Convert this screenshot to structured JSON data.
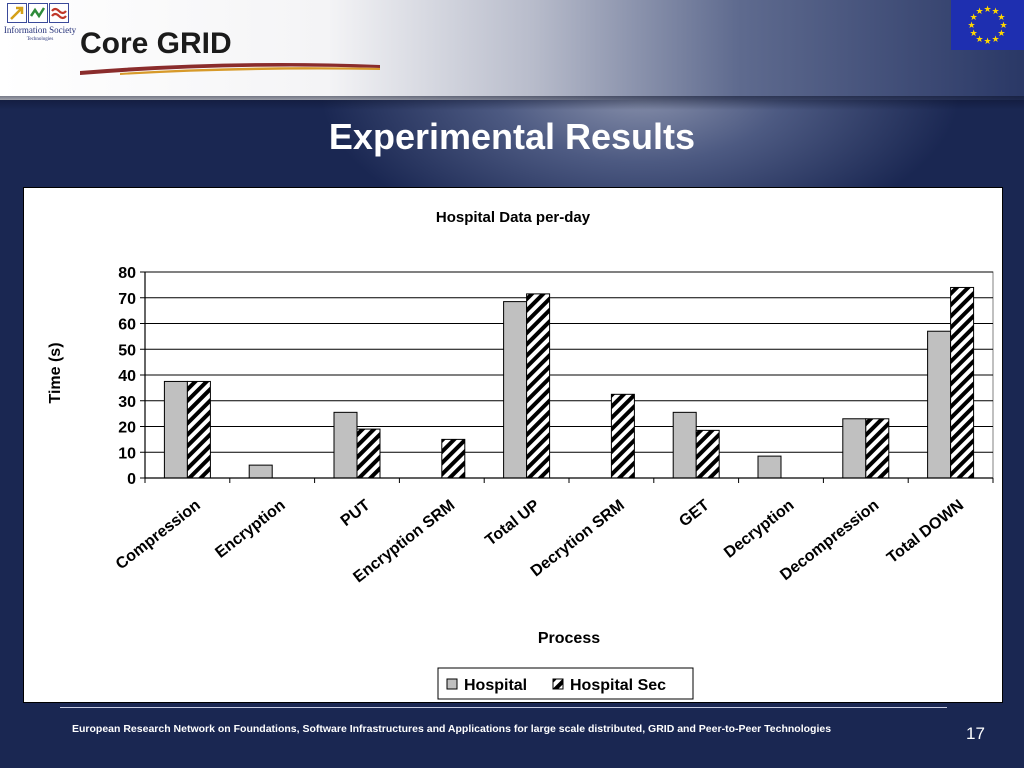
{
  "header": {
    "ist_logo_text": "Information Society",
    "ist_logo_subtext": "Technologies",
    "coregrid_logo_text": "Core GRID"
  },
  "slide": {
    "title": "Experimental Results",
    "footer": "European Research Network on Foundations, Software Infrastructures and Applications for large scale distributed, GRID and Peer-to-Peer Technologies",
    "page_number": "17"
  },
  "colors": {
    "slide_background": "#1a2752",
    "hospital_bar": "#c0c0c0",
    "hospital_sec_bar": "#ffffff",
    "eu_flag": "#1e2fb0",
    "eu_stars": "#ffd700"
  },
  "chart_data": {
    "type": "bar",
    "title": "Hospital Data per-day",
    "xlabel": "Process",
    "ylabel": "Time (s)",
    "ylim": [
      0,
      80
    ],
    "yticks": [
      "0",
      "10",
      "20",
      "30",
      "40",
      "50",
      "60",
      "70",
      "80"
    ],
    "grid": true,
    "legend_position": "bottom",
    "categories": [
      "Compression",
      "Encryption",
      "PUT",
      "Encryption SRM",
      "Total UP",
      "Decrytion SRM",
      "GET",
      "Decryption",
      "Decompression",
      "Total DOWN"
    ],
    "series": [
      {
        "name": "Hospital",
        "values": [
          37.5,
          5,
          25.5,
          0,
          68.5,
          0,
          25.5,
          8.5,
          23,
          57
        ],
        "style": "solid-gray"
      },
      {
        "name": "Hospital Sec",
        "values": [
          37.5,
          0,
          19,
          15,
          71.5,
          32.5,
          18.5,
          0,
          23,
          74
        ],
        "style": "diagonal-hatch"
      }
    ]
  }
}
